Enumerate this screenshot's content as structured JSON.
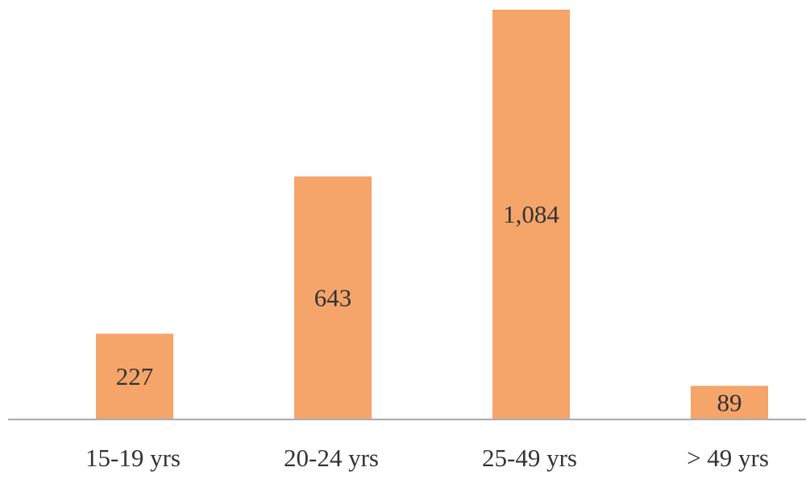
{
  "chart_data": {
    "type": "bar",
    "categories": [
      "15-19 yrs",
      "20-24 yrs",
      "25-49 yrs",
      "> 49 yrs"
    ],
    "values": [
      227,
      643,
      1084,
      89
    ],
    "value_labels": [
      "227",
      "643",
      "1,084",
      "89"
    ],
    "color": "#f5a46a"
  }
}
